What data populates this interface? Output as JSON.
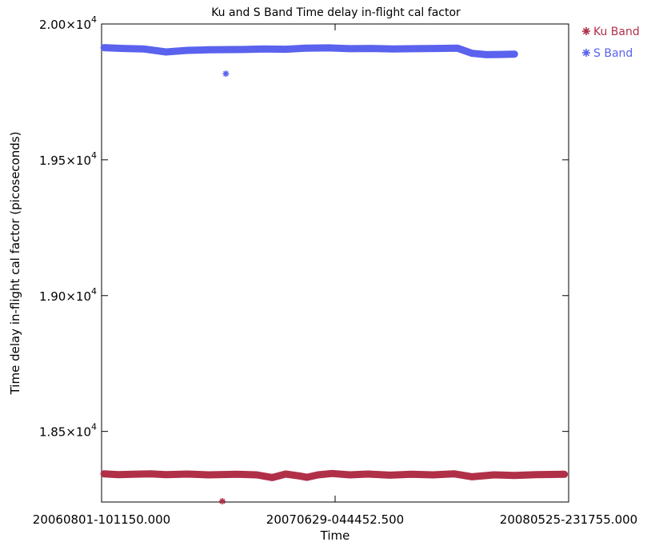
{
  "chart_data": {
    "type": "scatter",
    "title": "Ku and S Band Time delay in-flight cal factor",
    "xlabel": "Time",
    "ylabel": "Time delay in-flight cal factor (picoseconds)",
    "x_tick_labels": [
      "20060801-101150.000",
      "20070629-044452.500",
      "20080525-231755.000"
    ],
    "xlim": [
      "2006-08-01T10:11:50",
      "2008-05-25T23:17:55"
    ],
    "y_ticks": [
      {
        "value": 18500,
        "mantissa": "1.85",
        "times": "×10",
        "exp": "4"
      },
      {
        "value": 19000,
        "mantissa": "1.90",
        "times": "×10",
        "exp": "4"
      },
      {
        "value": 19500,
        "mantissa": "1.95",
        "times": "×10",
        "exp": "4"
      },
      {
        "value": 20000,
        "mantissa": "2.00",
        "times": "×10",
        "exp": "4"
      }
    ],
    "ylim": [
      18240,
      20000
    ],
    "legend_position": "right-outside-top",
    "marker": "asterisk",
    "series": [
      {
        "name": "Ku Band",
        "color": "#b03048",
        "points": [
          [
            "2006-08-05",
            18344
          ],
          [
            "2006-08-25",
            18341
          ],
          [
            "2006-09-15",
            18342
          ],
          [
            "2006-10-10",
            18344
          ],
          [
            "2006-11-01",
            18341
          ],
          [
            "2006-12-01",
            18343
          ],
          [
            "2007-01-01",
            18340
          ],
          [
            "2007-01-20",
            18243
          ],
          [
            "2007-02-10",
            18342
          ],
          [
            "2007-03-10",
            18340
          ],
          [
            "2007-04-01",
            18330
          ],
          [
            "2007-04-20",
            18343
          ],
          [
            "2007-05-10",
            18336
          ],
          [
            "2007-05-20",
            18331
          ],
          [
            "2007-06-05",
            18340
          ],
          [
            "2007-06-25",
            18345
          ],
          [
            "2007-07-20",
            18340
          ],
          [
            "2007-08-15",
            18343
          ],
          [
            "2007-09-15",
            18339
          ],
          [
            "2007-10-15",
            18342
          ],
          [
            "2007-11-15",
            18340
          ],
          [
            "2007-12-15",
            18344
          ],
          [
            "2008-01-10",
            18333
          ],
          [
            "2008-02-10",
            18340
          ],
          [
            "2008-03-10",
            18338
          ],
          [
            "2008-04-10",
            18341
          ],
          [
            "2008-05-20",
            18342
          ]
        ]
      },
      {
        "name": "S Band",
        "color": "#5a62ee",
        "points": [
          [
            "2006-08-05",
            19913
          ],
          [
            "2006-09-01",
            19910
          ],
          [
            "2006-10-01",
            19908
          ],
          [
            "2006-11-01",
            19897
          ],
          [
            "2006-12-01",
            19903
          ],
          [
            "2007-01-01",
            19905
          ],
          [
            "2007-01-25",
            19817
          ],
          [
            "2007-02-20",
            19906
          ],
          [
            "2007-03-20",
            19908
          ],
          [
            "2007-04-20",
            19907
          ],
          [
            "2007-05-20",
            19911
          ],
          [
            "2007-06-20",
            19912
          ],
          [
            "2007-07-20",
            19909
          ],
          [
            "2007-08-20",
            19910
          ],
          [
            "2007-09-20",
            19908
          ],
          [
            "2007-10-20",
            19909
          ],
          [
            "2007-11-20",
            19910
          ],
          [
            "2007-12-20",
            19911
          ],
          [
            "2008-01-10",
            19892
          ],
          [
            "2008-01-30",
            19887
          ],
          [
            "2008-02-20",
            19888
          ],
          [
            "2008-03-10",
            19889
          ]
        ]
      }
    ]
  }
}
